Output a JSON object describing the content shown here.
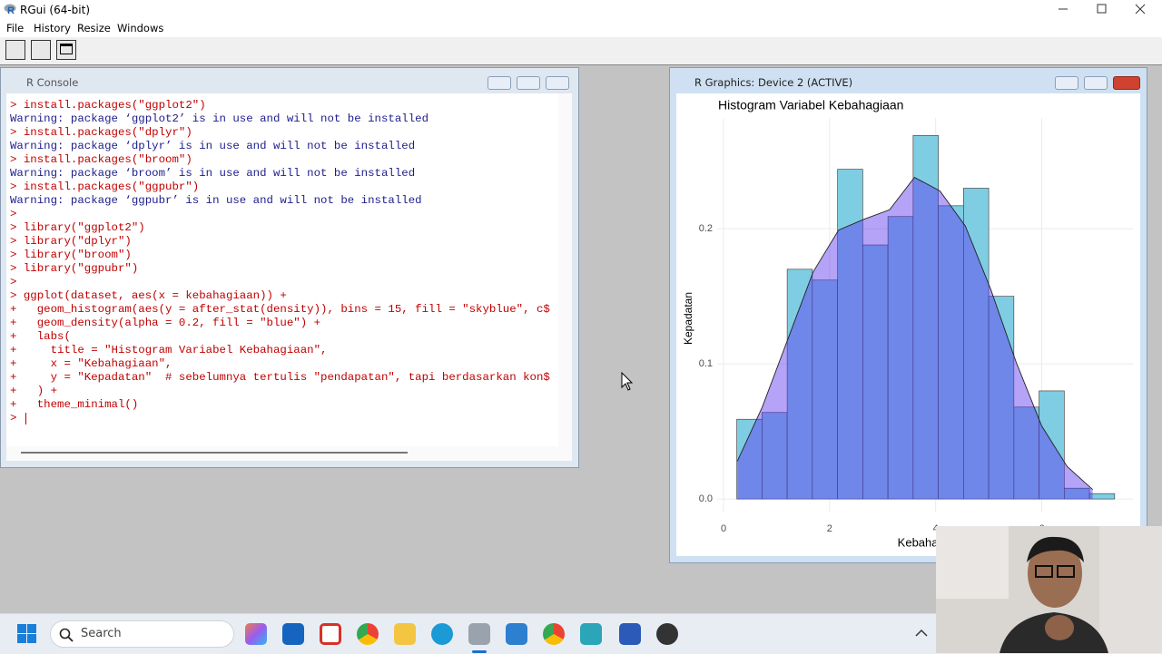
{
  "app": {
    "title": "RGui (64-bit)",
    "menu": [
      "File",
      "History",
      "Resize",
      "Windows"
    ]
  },
  "console": {
    "title": "R Console",
    "lines": [
      {
        "kind": "input",
        "text": "> install.packages(\"ggplot2\")"
      },
      {
        "kind": "output",
        "text": "Warning: package ‘ggplot2’ is in use and will not be installed"
      },
      {
        "kind": "input",
        "text": "> install.packages(\"dplyr\")"
      },
      {
        "kind": "output",
        "text": "Warning: package ‘dplyr’ is in use and will not be installed"
      },
      {
        "kind": "input",
        "text": "> install.packages(\"broom\")"
      },
      {
        "kind": "output",
        "text": "Warning: package ‘broom’ is in use and will not be installed"
      },
      {
        "kind": "input",
        "text": "> install.packages(\"ggpubr\")"
      },
      {
        "kind": "output",
        "text": "Warning: package ‘ggpubr’ is in use and will not be installed"
      },
      {
        "kind": "input",
        "text": ">"
      },
      {
        "kind": "input",
        "text": "> library(\"ggplot2\")"
      },
      {
        "kind": "input",
        "text": "> library(\"dplyr\")"
      },
      {
        "kind": "input",
        "text": "> library(\"broom\")"
      },
      {
        "kind": "input",
        "text": "> library(\"ggpubr\")"
      },
      {
        "kind": "input",
        "text": ">"
      },
      {
        "kind": "input",
        "text": "> ggplot(dataset, aes(x = kebahagiaan)) +"
      },
      {
        "kind": "input",
        "text": "+   geom_histogram(aes(y = after_stat(density)), bins = 15, fill = \"skyblue\", c$"
      },
      {
        "kind": "input",
        "text": "+   geom_density(alpha = 0.2, fill = \"blue\") +"
      },
      {
        "kind": "input",
        "text": "+   labs("
      },
      {
        "kind": "input",
        "text": "+     title = \"Histogram Variabel Kebahagiaan\","
      },
      {
        "kind": "input",
        "text": "+     x = \"Kebahagiaan\","
      },
      {
        "kind": "input",
        "text": "+     y = \"Kepadatan\"  # sebelumnya tertulis \"pendapatan\", tapi berdasarkan kon$"
      },
      {
        "kind": "input",
        "text": "+   ) +"
      },
      {
        "kind": "input",
        "text": "+   theme_minimal()"
      },
      {
        "kind": "input",
        "text": ">"
      }
    ]
  },
  "graphics": {
    "title": "R Graphics: Device 2 (ACTIVE)"
  },
  "chart_data": {
    "type": "histogram",
    "title": "Histogram Variabel Kebahagiaan",
    "x_label": "Kebahagiaan",
    "y_label": "Kepadatan",
    "bins": [
      0.25,
      0.725,
      1.2,
      1.675,
      2.15,
      2.625,
      3.1,
      3.575,
      4.05,
      4.525,
      5.0,
      5.475,
      5.95,
      6.425,
      6.9,
      7.375
    ],
    "values": [
      0.059,
      0.064,
      0.17,
      0.162,
      0.244,
      0.188,
      0.209,
      0.269,
      0.217,
      0.23,
      0.15,
      0.068,
      0.08,
      0.008,
      0.004
    ],
    "color": "#7fcde3",
    "density": {
      "x": [
        0.26,
        0.73,
        1.21,
        1.69,
        2.17,
        2.65,
        3.13,
        3.6,
        4.08,
        4.56,
        5.04,
        5.52,
        6.0,
        6.48,
        6.96
      ],
      "y": [
        0.028,
        0.068,
        0.118,
        0.168,
        0.199,
        0.207,
        0.214,
        0.238,
        0.228,
        0.202,
        0.155,
        0.101,
        0.054,
        0.024,
        0.007
      ],
      "color": "#5a32ee",
      "opacity": 0.45
    },
    "xlim": [
      -0.12,
      7.72
    ],
    "ylim": [
      -0.01,
      0.282
    ],
    "xticks": [
      0,
      2,
      4,
      6
    ],
    "yticks": [
      {
        "value": 0,
        "label": "0.0"
      },
      0.1,
      0.2
    ],
    "grid": true
  },
  "taskbar": {
    "search": "Search"
  }
}
